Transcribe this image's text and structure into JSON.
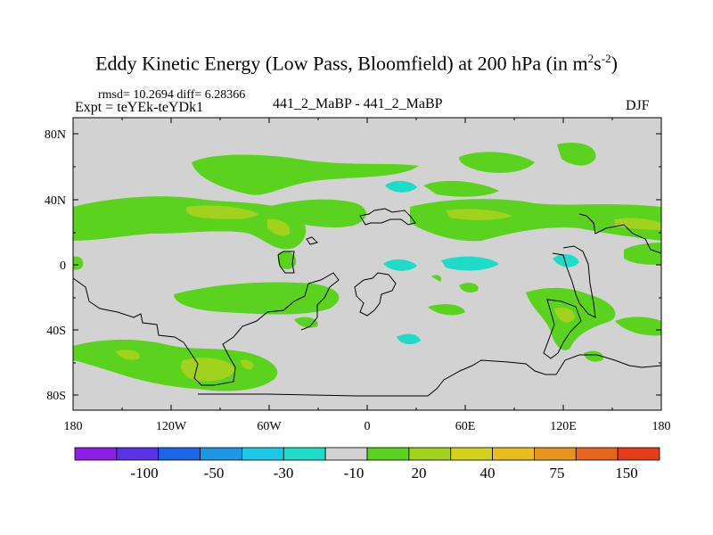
{
  "title": {
    "main": "Eddy Kinetic Energy (Low Pass, Bloomfield) at 200 hPa (in m",
    "sup1": "2",
    "mid": "s",
    "sup2": "-2",
    "end": ")"
  },
  "stats": "rmsd= 10.2694  diff= 6.28366",
  "expt": "Expt = teYEk-teYDk1",
  "comparison": "441_2_MaBP - 441_2_MaBP",
  "season": "DJF",
  "axes": {
    "lat_labels": [
      "80N",
      "40N",
      "0",
      "40S",
      "80S"
    ],
    "lon_labels": [
      "180",
      "120W",
      "60W",
      "0",
      "60E",
      "120E",
      "180"
    ]
  },
  "colorbar": {
    "colors": [
      "#8c1ee6",
      "#5a32e6",
      "#1e64e6",
      "#1e96e6",
      "#1ec8e6",
      "#1edcc8",
      "#d2d2d2",
      "#5ad21e",
      "#a0d21e",
      "#d2d21e",
      "#e6be1e",
      "#e6961e",
      "#e6641e",
      "#e63c1e"
    ],
    "labels": [
      "-100",
      "-50",
      "-30",
      "-10",
      "20",
      "40",
      "75",
      "150"
    ]
  },
  "map_colors": {
    "background": "#d2d2d2",
    "green": "#5ad21e",
    "yellowgreen": "#a0d21e",
    "cyan": "#1edcc8",
    "coast": "#000000"
  }
}
